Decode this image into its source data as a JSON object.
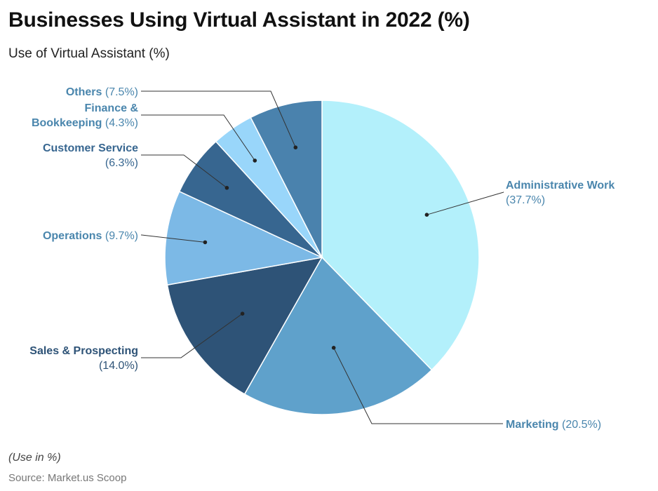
{
  "title": "Businesses Using Virtual Assistant in 2022 (%)",
  "subtitle": "Use of Virtual Assistant (%)",
  "note": "(Use in %)",
  "source": "Source: Market.us Scoop",
  "chart_data": {
    "type": "pie",
    "title": "Businesses Using Virtual Assistant in 2022 (%)",
    "subtitle": "Use of Virtual Assistant (%)",
    "unit": "%",
    "slices": [
      {
        "label": "Administrative Work",
        "value": 37.7,
        "display": "(37.7%)",
        "color": "#b3f0fb",
        "label_color": "#4a86ad"
      },
      {
        "label": "Marketing",
        "value": 20.5,
        "display": "(20.5%)",
        "color": "#5fa1cb",
        "label_color": "#4a86ad"
      },
      {
        "label": "Sales & Prospecting",
        "value": 14.0,
        "display": "(14.0%)",
        "color": "#2e5377",
        "label_color": "#2e5377"
      },
      {
        "label": "Operations",
        "value": 9.7,
        "display": "(9.7%)",
        "color": "#7cb9e6",
        "label_color": "#4a86ad"
      },
      {
        "label": "Customer Service",
        "value": 6.3,
        "display": "(6.3%)",
        "color": "#376690",
        "label_color": "#376690"
      },
      {
        "label": "Finance & Bookkeeping",
        "value": 4.3,
        "display": "(4.3%)",
        "color": "#99d6fa",
        "label_color": "#4a86ad"
      },
      {
        "label": "Others",
        "value": 7.5,
        "display": "(7.5%)",
        "color": "#4a82ad",
        "label_color": "#4a86ad"
      }
    ]
  }
}
